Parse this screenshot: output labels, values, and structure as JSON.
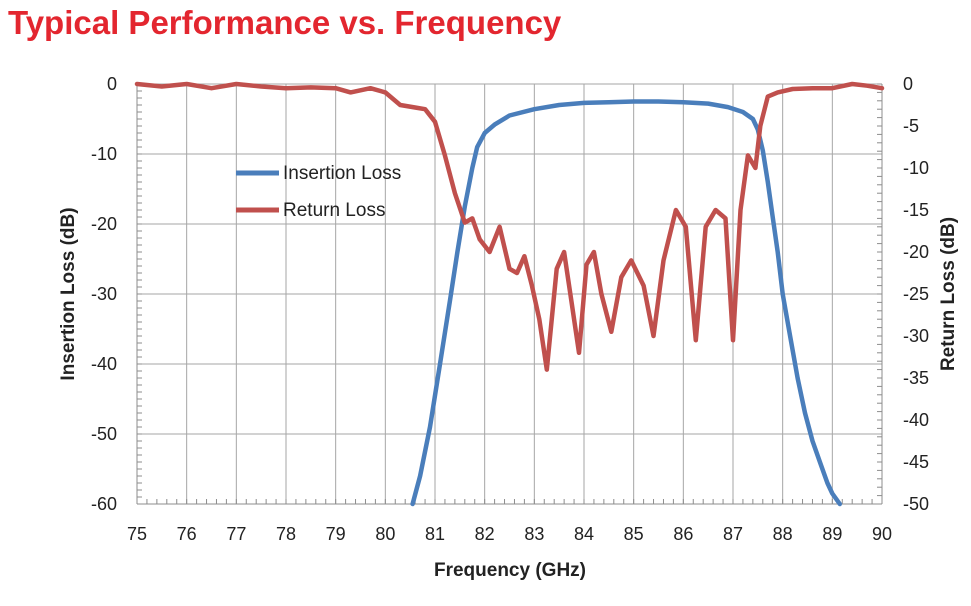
{
  "chart_data": {
    "type": "line",
    "title": "Typical Performance vs. Frequency",
    "xlabel": "Frequency (GHz)",
    "ylabel_left": "Insertion Loss (dB)",
    "ylabel_right": "Return Loss (dB)",
    "xlim": [
      75,
      90
    ],
    "ylim_left": [
      -60,
      0
    ],
    "ylim_right": [
      -50,
      0
    ],
    "xticks": [
      75,
      76,
      77,
      78,
      79,
      80,
      81,
      82,
      83,
      84,
      85,
      86,
      87,
      88,
      89,
      90
    ],
    "yticks_left": [
      0,
      -10,
      -20,
      -30,
      -40,
      -50,
      -60
    ],
    "yticks_right": [
      0,
      -5,
      -10,
      -15,
      -20,
      -25,
      -30,
      -35,
      -40,
      -45,
      -50
    ],
    "grid": true,
    "legend_position": "upper-left",
    "series": [
      {
        "name": "Insertion Loss",
        "axis": "left",
        "color": "#4a7ebb",
        "x": [
          80.55,
          80.7,
          80.9,
          81.1,
          81.3,
          81.45,
          81.6,
          81.75,
          81.85,
          82.0,
          82.2,
          82.5,
          83.0,
          83.5,
          84.0,
          84.5,
          85.0,
          85.5,
          86.0,
          86.5,
          86.9,
          87.2,
          87.4,
          87.5,
          87.6,
          87.7,
          87.8,
          87.9,
          88.0,
          88.15,
          88.3,
          88.45,
          88.6,
          88.75,
          88.9,
          89.0,
          89.1,
          89.15
        ],
        "y": [
          -60,
          -56,
          -49,
          -40,
          -31,
          -24,
          -17.5,
          -12,
          -9,
          -7,
          -5.8,
          -4.5,
          -3.6,
          -3.0,
          -2.7,
          -2.6,
          -2.5,
          -2.5,
          -2.6,
          -2.8,
          -3.3,
          -4.0,
          -5.0,
          -6.5,
          -9.5,
          -14,
          -19,
          -24,
          -30,
          -36,
          -42,
          -47,
          -51,
          -54,
          -57,
          -58.5,
          -59.5,
          -60
        ]
      },
      {
        "name": "Return Loss",
        "axis": "right",
        "color": "#c0504d",
        "x": [
          75.0,
          75.5,
          76.0,
          76.5,
          77.0,
          77.5,
          78.0,
          78.5,
          79.0,
          79.3,
          79.7,
          80.0,
          80.3,
          80.6,
          80.8,
          81.0,
          81.2,
          81.4,
          81.6,
          81.75,
          81.9,
          82.1,
          82.3,
          82.5,
          82.65,
          82.8,
          82.95,
          83.1,
          83.25,
          83.45,
          83.6,
          83.75,
          83.9,
          84.05,
          84.2,
          84.35,
          84.55,
          84.75,
          84.95,
          85.2,
          85.4,
          85.6,
          85.85,
          86.05,
          86.25,
          86.45,
          86.65,
          86.85,
          87.0,
          87.15,
          87.3,
          87.45,
          87.55,
          87.7,
          87.9,
          88.2,
          88.6,
          89.0,
          89.4,
          89.7,
          90.0
        ],
        "y": [
          0,
          -0.3,
          0,
          -0.5,
          0,
          -0.3,
          -0.5,
          -0.4,
          -0.5,
          -1.0,
          -0.5,
          -1.0,
          -2.5,
          -2.8,
          -3.0,
          -4.5,
          -8.5,
          -13,
          -16.5,
          -16,
          -18.5,
          -20,
          -17,
          -22,
          -22.5,
          -20.5,
          -24,
          -28,
          -34,
          -22,
          -20,
          -26,
          -32,
          -21.5,
          -20,
          -25,
          -29.5,
          -23,
          -21,
          -24,
          -30,
          -21,
          -15,
          -17,
          -30.5,
          -17,
          -15,
          -16,
          -30.5,
          -15,
          -8.5,
          -10,
          -5,
          -1.5,
          -1,
          -0.6,
          -0.5,
          -0.5,
          0,
          -0.2,
          -0.5
        ]
      }
    ]
  }
}
